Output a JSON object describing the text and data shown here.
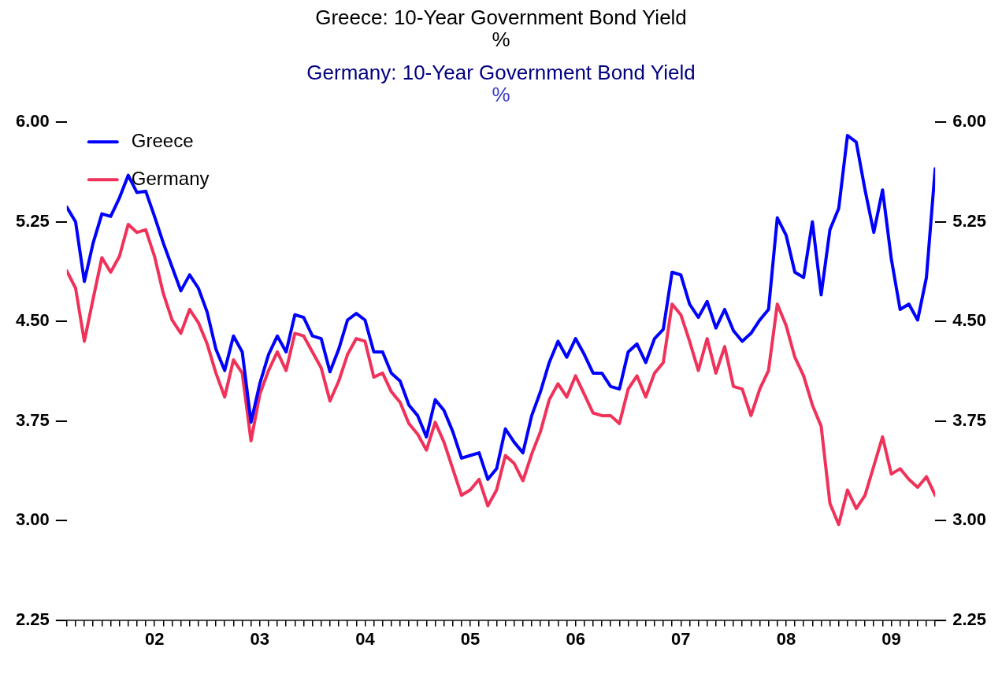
{
  "chart_data": {
    "type": "line",
    "title": "Greece: 10-Year Government Bond Yield",
    "subtitle": "%",
    "annotations": [
      "Germany: 10-Year Government Bond Yield",
      "%"
    ],
    "x": [
      "2001-09",
      "2001-10",
      "2001-11",
      "2001-12",
      "2002-01",
      "2002-02",
      "2002-03",
      "2002-04",
      "2002-05",
      "2002-06",
      "2002-07",
      "2002-08",
      "2002-09",
      "2002-10",
      "2002-11",
      "2002-12",
      "2003-01",
      "2003-02",
      "2003-03",
      "2003-04",
      "2003-05",
      "2003-06",
      "2003-07",
      "2003-08",
      "2003-09",
      "2003-10",
      "2003-11",
      "2003-12",
      "2004-01",
      "2004-02",
      "2004-03",
      "2004-04",
      "2004-05",
      "2004-06",
      "2004-07",
      "2004-08",
      "2004-09",
      "2004-10",
      "2004-11",
      "2004-12",
      "2005-01",
      "2005-02",
      "2005-03",
      "2005-04",
      "2005-05",
      "2005-06",
      "2005-07",
      "2005-08",
      "2005-09",
      "2005-10",
      "2005-11",
      "2005-12",
      "2006-01",
      "2006-02",
      "2006-03",
      "2006-04",
      "2006-05",
      "2006-06",
      "2006-07",
      "2006-08",
      "2006-09",
      "2006-10",
      "2006-11",
      "2006-12",
      "2007-01",
      "2007-02",
      "2007-03",
      "2007-04",
      "2007-05",
      "2007-06",
      "2007-07",
      "2007-08",
      "2007-09",
      "2007-10",
      "2007-11",
      "2007-12",
      "2008-01",
      "2008-02",
      "2008-03",
      "2008-04",
      "2008-05",
      "2008-06",
      "2008-07",
      "2008-08",
      "2008-09",
      "2008-10",
      "2008-11",
      "2008-12",
      "2009-01",
      "2009-02",
      "2009-03",
      "2009-04",
      "2009-05",
      "2009-06",
      "2009-07",
      "2009-08",
      "2009-09",
      "2009-10",
      "2009-11",
      "2009-12"
    ],
    "series": [
      {
        "name": "Greece",
        "color": "#0000ff",
        "values": [
          5.36,
          5.25,
          4.8,
          5.09,
          5.31,
          5.29,
          5.43,
          5.6,
          5.47,
          5.48,
          5.29,
          5.09,
          4.91,
          4.73,
          4.85,
          4.75,
          4.57,
          4.29,
          4.13,
          4.39,
          4.27,
          3.74,
          4.03,
          4.25,
          4.39,
          4.27,
          4.55,
          4.53,
          4.39,
          4.37,
          4.12,
          4.29,
          4.51,
          4.56,
          4.51,
          4.27,
          4.27,
          4.11,
          4.05,
          3.87,
          3.79,
          3.63,
          3.91,
          3.83,
          3.67,
          3.47,
          3.49,
          3.51,
          3.31,
          3.39,
          3.69,
          3.59,
          3.51,
          3.79,
          3.97,
          4.19,
          4.35,
          4.23,
          4.37,
          4.25,
          4.11,
          4.11,
          4.01,
          3.99,
          4.27,
          4.33,
          4.19,
          4.37,
          4.44,
          4.87,
          4.85,
          4.63,
          4.53,
          4.65,
          4.45,
          4.59,
          4.43,
          4.35,
          4.41,
          4.51,
          4.59,
          5.28,
          5.15,
          4.87,
          4.83,
          5.25,
          4.7,
          5.19,
          5.35,
          5.9,
          5.85,
          5.49,
          5.17,
          5.49,
          4.97,
          4.59,
          4.63,
          4.51,
          4.83,
          5.65
        ]
      },
      {
        "name": "Germany",
        "color": "#f0325a",
        "values": [
          4.88,
          4.75,
          4.35,
          4.67,
          4.98,
          4.87,
          4.99,
          5.23,
          5.17,
          5.19,
          4.99,
          4.71,
          4.51,
          4.41,
          4.59,
          4.49,
          4.33,
          4.11,
          3.93,
          4.21,
          4.11,
          3.6,
          3.95,
          4.13,
          4.27,
          4.13,
          4.41,
          4.39,
          4.27,
          4.15,
          3.9,
          4.05,
          4.25,
          4.37,
          4.35,
          4.08,
          4.11,
          3.97,
          3.89,
          3.73,
          3.65,
          3.53,
          3.74,
          3.59,
          3.39,
          3.19,
          3.23,
          3.31,
          3.11,
          3.23,
          3.49,
          3.43,
          3.3,
          3.5,
          3.67,
          3.91,
          4.03,
          3.93,
          4.09,
          3.95,
          3.81,
          3.79,
          3.79,
          3.73,
          3.99,
          4.09,
          3.93,
          4.11,
          4.19,
          4.63,
          4.55,
          4.35,
          4.13,
          4.37,
          4.11,
          4.31,
          4.01,
          3.99,
          3.79,
          3.99,
          4.13,
          4.63,
          4.47,
          4.23,
          4.09,
          3.87,
          3.71,
          3.13,
          2.97,
          3.23,
          3.09,
          3.19,
          3.41,
          3.63,
          3.35,
          3.39,
          3.31,
          3.25,
          3.33,
          3.19
        ]
      }
    ],
    "xlim": [
      "2001-09",
      "2009-12"
    ],
    "xticks": [
      {
        "value": "2001-09",
        "label": null
      },
      {
        "value": "2001-10",
        "label": null
      },
      {
        "value": "2001-11",
        "label": null
      },
      {
        "value": "2001-12",
        "label": null
      },
      {
        "value": "2002-01",
        "label": null
      },
      {
        "value": "2002-02",
        "label": null
      },
      {
        "value": "2002-03",
        "label": null
      },
      {
        "value": "2002-04",
        "label": null
      },
      {
        "value": "2002-05",
        "label": null
      },
      {
        "value": "2002-06",
        "label": null
      },
      {
        "value": "2002-07",
        "label": "02"
      },
      {
        "value": "2002-08",
        "label": null
      },
      {
        "value": "2002-09",
        "label": null
      },
      {
        "value": "2002-10",
        "label": null
      },
      {
        "value": "2002-11",
        "label": null
      },
      {
        "value": "2002-12",
        "label": null
      },
      {
        "value": "2003-01",
        "label": null
      },
      {
        "value": "2003-02",
        "label": null
      },
      {
        "value": "2003-03",
        "label": null
      },
      {
        "value": "2003-04",
        "label": null
      },
      {
        "value": "2003-05",
        "label": null
      },
      {
        "value": "2003-06",
        "label": null
      },
      {
        "value": "2003-07",
        "label": "03"
      },
      {
        "value": "2003-08",
        "label": null
      },
      {
        "value": "2003-09",
        "label": null
      },
      {
        "value": "2003-10",
        "label": null
      },
      {
        "value": "2003-11",
        "label": null
      },
      {
        "value": "2003-12",
        "label": null
      },
      {
        "value": "2004-01",
        "label": null
      },
      {
        "value": "2004-02",
        "label": null
      },
      {
        "value": "2004-03",
        "label": null
      },
      {
        "value": "2004-04",
        "label": null
      },
      {
        "value": "2004-05",
        "label": null
      },
      {
        "value": "2004-06",
        "label": null
      },
      {
        "value": "2004-07",
        "label": "04"
      },
      {
        "value": "2004-08",
        "label": null
      },
      {
        "value": "2004-09",
        "label": null
      },
      {
        "value": "2004-10",
        "label": null
      },
      {
        "value": "2004-11",
        "label": null
      },
      {
        "value": "2004-12",
        "label": null
      },
      {
        "value": "2005-01",
        "label": null
      },
      {
        "value": "2005-02",
        "label": null
      },
      {
        "value": "2005-03",
        "label": null
      },
      {
        "value": "2005-04",
        "label": null
      },
      {
        "value": "2005-05",
        "label": null
      },
      {
        "value": "2005-06",
        "label": null
      },
      {
        "value": "2005-07",
        "label": "05"
      },
      {
        "value": "2005-08",
        "label": null
      },
      {
        "value": "2005-09",
        "label": null
      },
      {
        "value": "2005-10",
        "label": null
      },
      {
        "value": "2005-11",
        "label": null
      },
      {
        "value": "2005-12",
        "label": null
      },
      {
        "value": "2006-01",
        "label": null
      },
      {
        "value": "2006-02",
        "label": null
      },
      {
        "value": "2006-03",
        "label": null
      },
      {
        "value": "2006-04",
        "label": null
      },
      {
        "value": "2006-05",
        "label": null
      },
      {
        "value": "2006-06",
        "label": null
      },
      {
        "value": "2006-07",
        "label": "06"
      },
      {
        "value": "2006-08",
        "label": null
      },
      {
        "value": "2006-09",
        "label": null
      },
      {
        "value": "2006-10",
        "label": null
      },
      {
        "value": "2006-11",
        "label": null
      },
      {
        "value": "2006-12",
        "label": null
      },
      {
        "value": "2007-01",
        "label": null
      },
      {
        "value": "2007-02",
        "label": null
      },
      {
        "value": "2007-03",
        "label": null
      },
      {
        "value": "2007-04",
        "label": null
      },
      {
        "value": "2007-05",
        "label": null
      },
      {
        "value": "2007-06",
        "label": null
      },
      {
        "value": "2007-07",
        "label": "07"
      },
      {
        "value": "2007-08",
        "label": null
      },
      {
        "value": "2007-09",
        "label": null
      },
      {
        "value": "2007-10",
        "label": null
      },
      {
        "value": "2007-11",
        "label": null
      },
      {
        "value": "2007-12",
        "label": null
      },
      {
        "value": "2008-01",
        "label": null
      },
      {
        "value": "2008-02",
        "label": null
      },
      {
        "value": "2008-03",
        "label": null
      },
      {
        "value": "2008-04",
        "label": null
      },
      {
        "value": "2008-05",
        "label": null
      },
      {
        "value": "2008-06",
        "label": null
      },
      {
        "value": "2008-07",
        "label": "08"
      },
      {
        "value": "2008-08",
        "label": null
      },
      {
        "value": "2008-09",
        "label": null
      },
      {
        "value": "2008-10",
        "label": null
      },
      {
        "value": "2008-11",
        "label": null
      },
      {
        "value": "2008-12",
        "label": null
      },
      {
        "value": "2009-01",
        "label": null
      },
      {
        "value": "2009-02",
        "label": null
      },
      {
        "value": "2009-03",
        "label": null
      },
      {
        "value": "2009-04",
        "label": null
      },
      {
        "value": "2009-05",
        "label": null
      },
      {
        "value": "2009-06",
        "label": null
      },
      {
        "value": "2009-07",
        "label": "09"
      },
      {
        "value": "2009-08",
        "label": null
      },
      {
        "value": "2009-09",
        "label": null
      },
      {
        "value": "2009-10",
        "label": null
      },
      {
        "value": "2009-11",
        "label": null
      },
      {
        "value": "2009-12",
        "label": null
      }
    ],
    "ylim": [
      2.25,
      6
    ],
    "yticks": [
      {
        "value": 2.25,
        "label": "2.25"
      },
      {
        "value": 3,
        "label": "3.00"
      },
      {
        "value": 3.75,
        "label": "3.75"
      },
      {
        "value": 4.5,
        "label": "4.50"
      },
      {
        "value": 5.25,
        "label": "5.25"
      },
      {
        "value": 6,
        "label": "6.00"
      }
    ],
    "y2lim": [
      2.25,
      6
    ],
    "y2ticks": [
      {
        "value": 2.25,
        "label": "2.25"
      },
      {
        "value": 3,
        "label": "3.00"
      },
      {
        "value": 3.75,
        "label": "3.75"
      },
      {
        "value": 4.5,
        "label": "4.50"
      },
      {
        "value": 5.25,
        "label": "5.25"
      },
      {
        "value": 6,
        "label": "6.00"
      }
    ],
    "legend": "top left",
    "grid": false,
    "marker": "none",
    "line_style": "solid"
  }
}
